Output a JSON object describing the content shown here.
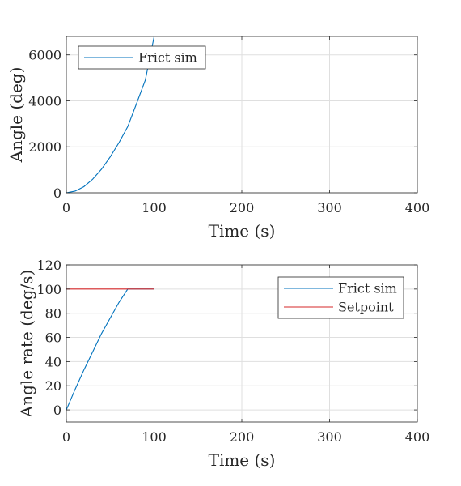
{
  "chart_data": [
    {
      "type": "line",
      "xlabel": "Time (s)",
      "ylabel": "Angle (deg)",
      "xlim": [
        0,
        400
      ],
      "ylim": [
        0,
        6800
      ],
      "xticks": [
        0,
        100,
        200,
        300,
        400
      ],
      "yticks": [
        0,
        2000,
        4000,
        6000
      ],
      "grid": true,
      "legend_position": "top-left",
      "series": [
        {
          "name": "Frict sim",
          "color": "#0072BD",
          "x": [
            0,
            10,
            20,
            30,
            40,
            50,
            60,
            70,
            80,
            90,
            100
          ],
          "y": [
            0,
            72,
            265,
            590,
            1020,
            1560,
            2180,
            2880,
            3880,
            4900,
            6780
          ]
        }
      ]
    },
    {
      "type": "line",
      "xlabel": "Time (s)",
      "ylabel": "Angle rate (deg/s)",
      "xlim": [
        0,
        400
      ],
      "ylim": [
        -10,
        120
      ],
      "xticks": [
        0,
        100,
        200,
        300,
        400
      ],
      "yticks": [
        0,
        20,
        40,
        60,
        80,
        100,
        120
      ],
      "grid": true,
      "legend_position": "top-right",
      "series": [
        {
          "name": "Frict sim",
          "color": "#0072BD",
          "x": [
            0,
            10,
            20,
            30,
            40,
            50,
            60,
            70,
            80,
            90,
            100
          ],
          "y": [
            0,
            17,
            33,
            48,
            63,
            76,
            89,
            100,
            100,
            100,
            100
          ]
        },
        {
          "name": "Setpoint",
          "color": "#D62728",
          "x": [
            0,
            100
          ],
          "y": [
            100,
            100
          ]
        }
      ]
    }
  ]
}
